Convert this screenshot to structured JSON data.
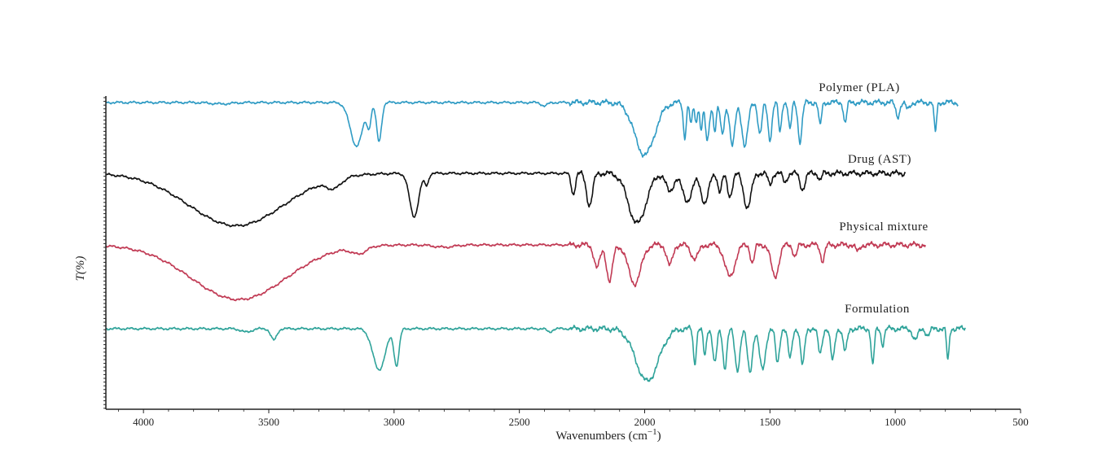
{
  "chart_data": {
    "type": "line",
    "title": "",
    "xlabel": "Wavenumbers (cm",
    "xlabel_sup": "−1",
    "xlabel_close": ")",
    "ylabel": "T(%)",
    "xlim": [
      4150,
      500
    ],
    "x_reversed": true,
    "xticks": [
      4000,
      3500,
      3000,
      2500,
      2000,
      1500,
      1000,
      500
    ],
    "xtick_labels": [
      "4000",
      "3500",
      "3000",
      "2500",
      "2000",
      "1500",
      "1000",
      "500"
    ],
    "grid": false,
    "series": [
      {
        "name": "Polymer (PLA)",
        "color": "#2f9bc4",
        "baseline": 0,
        "x_range": [
          4150,
          750
        ],
        "features": [
          {
            "x": 3690,
            "depth": 0.06,
            "width": 40
          },
          {
            "x": 3150,
            "depth": 1.9,
            "width": 25
          },
          {
            "x": 3100,
            "depth": 0.9,
            "width": 8
          },
          {
            "x": 3060,
            "depth": 1.7,
            "width": 10
          },
          {
            "x": 2400,
            "depth": 0.15,
            "width": 12
          },
          {
            "x": 2000,
            "depth": 2.3,
            "width": 40
          },
          {
            "x": 1840,
            "depth": 1.5,
            "width": 6
          },
          {
            "x": 1815,
            "depth": 1.0,
            "width": 5
          },
          {
            "x": 1795,
            "depth": 0.9,
            "width": 5
          },
          {
            "x": 1775,
            "depth": 1.2,
            "width": 5
          },
          {
            "x": 1750,
            "depth": 1.7,
            "width": 8
          },
          {
            "x": 1720,
            "depth": 1.2,
            "width": 6
          },
          {
            "x": 1690,
            "depth": 1.4,
            "width": 8
          },
          {
            "x": 1650,
            "depth": 1.9,
            "width": 10
          },
          {
            "x": 1600,
            "depth": 1.9,
            "width": 12
          },
          {
            "x": 1540,
            "depth": 1.4,
            "width": 8
          },
          {
            "x": 1500,
            "depth": 1.6,
            "width": 8
          },
          {
            "x": 1460,
            "depth": 1.3,
            "width": 6
          },
          {
            "x": 1420,
            "depth": 1.2,
            "width": 6
          },
          {
            "x": 1380,
            "depth": 1.7,
            "width": 8
          },
          {
            "x": 1300,
            "depth": 1.0,
            "width": 6
          },
          {
            "x": 1200,
            "depth": 0.9,
            "width": 6
          },
          {
            "x": 990,
            "depth": 0.6,
            "width": 8
          },
          {
            "x": 950,
            "depth": 0.3,
            "width": 8
          },
          {
            "x": 840,
            "depth": 1.3,
            "width": 5
          }
        ]
      },
      {
        "name": "Drug (AST)",
        "color": "#111111",
        "baseline": 0,
        "x_range": [
          4150,
          960
        ],
        "features": [
          {
            "x": 3630,
            "depth": 2.3,
            "width": 190
          },
          {
            "x": 3240,
            "depth": 0.4,
            "width": 30
          },
          {
            "x": 2920,
            "depth": 1.9,
            "width": 18
          },
          {
            "x": 2870,
            "depth": 0.5,
            "width": 8
          },
          {
            "x": 2285,
            "depth": 0.9,
            "width": 8
          },
          {
            "x": 2220,
            "depth": 1.4,
            "width": 12
          },
          {
            "x": 2030,
            "depth": 2.2,
            "width": 35
          },
          {
            "x": 1900,
            "depth": 0.8,
            "width": 15
          },
          {
            "x": 1830,
            "depth": 1.2,
            "width": 20
          },
          {
            "x": 1760,
            "depth": 1.3,
            "width": 15
          },
          {
            "x": 1700,
            "depth": 0.8,
            "width": 8
          },
          {
            "x": 1660,
            "depth": 1.0,
            "width": 10
          },
          {
            "x": 1590,
            "depth": 1.5,
            "width": 15
          },
          {
            "x": 1500,
            "depth": 0.5,
            "width": 8
          },
          {
            "x": 1440,
            "depth": 0.4,
            "width": 8
          },
          {
            "x": 1370,
            "depth": 0.7,
            "width": 10
          },
          {
            "x": 1300,
            "depth": 0.3,
            "width": 6
          }
        ]
      },
      {
        "name": "Physical mixture",
        "color": "#c13a54",
        "baseline": 0,
        "x_range": [
          4150,
          880
        ],
        "features": [
          {
            "x": 3620,
            "depth": 2.4,
            "width": 190
          },
          {
            "x": 3140,
            "depth": 0.3,
            "width": 30
          },
          {
            "x": 2800,
            "depth": 0.1,
            "width": 40
          },
          {
            "x": 2190,
            "depth": 1.0,
            "width": 12
          },
          {
            "x": 2140,
            "depth": 1.6,
            "width": 12
          },
          {
            "x": 2040,
            "depth": 1.7,
            "width": 25
          },
          {
            "x": 1900,
            "depth": 0.9,
            "width": 12
          },
          {
            "x": 1800,
            "depth": 0.6,
            "width": 15
          },
          {
            "x": 1660,
            "depth": 1.4,
            "width": 20
          },
          {
            "x": 1570,
            "depth": 0.8,
            "width": 8
          },
          {
            "x": 1480,
            "depth": 1.4,
            "width": 15
          },
          {
            "x": 1400,
            "depth": 0.5,
            "width": 8
          },
          {
            "x": 1290,
            "depth": 0.7,
            "width": 8
          },
          {
            "x": 1150,
            "depth": 0.3,
            "width": 8
          }
        ]
      },
      {
        "name": "Formulation",
        "color": "#2fa39a",
        "baseline": 0,
        "x_range": [
          4150,
          720
        ],
        "features": [
          {
            "x": 3590,
            "depth": 0.15,
            "width": 20
          },
          {
            "x": 3480,
            "depth": 0.5,
            "width": 12
          },
          {
            "x": 3060,
            "depth": 1.8,
            "width": 25
          },
          {
            "x": 2990,
            "depth": 1.6,
            "width": 10
          },
          {
            "x": 2380,
            "depth": 0.15,
            "width": 10
          },
          {
            "x": 1990,
            "depth": 2.3,
            "width": 45
          },
          {
            "x": 1800,
            "depth": 1.5,
            "width": 6
          },
          {
            "x": 1760,
            "depth": 1.2,
            "width": 6
          },
          {
            "x": 1720,
            "depth": 1.5,
            "width": 8
          },
          {
            "x": 1680,
            "depth": 1.7,
            "width": 8
          },
          {
            "x": 1630,
            "depth": 1.8,
            "width": 10
          },
          {
            "x": 1580,
            "depth": 1.9,
            "width": 10
          },
          {
            "x": 1530,
            "depth": 1.8,
            "width": 12
          },
          {
            "x": 1470,
            "depth": 1.5,
            "width": 8
          },
          {
            "x": 1420,
            "depth": 1.3,
            "width": 8
          },
          {
            "x": 1370,
            "depth": 1.6,
            "width": 8
          },
          {
            "x": 1300,
            "depth": 1.1,
            "width": 8
          },
          {
            "x": 1250,
            "depth": 1.4,
            "width": 8
          },
          {
            "x": 1200,
            "depth": 1.0,
            "width": 8
          },
          {
            "x": 1090,
            "depth": 1.6,
            "width": 6
          },
          {
            "x": 1050,
            "depth": 0.7,
            "width": 6
          },
          {
            "x": 920,
            "depth": 0.5,
            "width": 10
          },
          {
            "x": 870,
            "depth": 0.3,
            "width": 8
          },
          {
            "x": 790,
            "depth": 1.4,
            "width": 5
          }
        ]
      }
    ]
  }
}
